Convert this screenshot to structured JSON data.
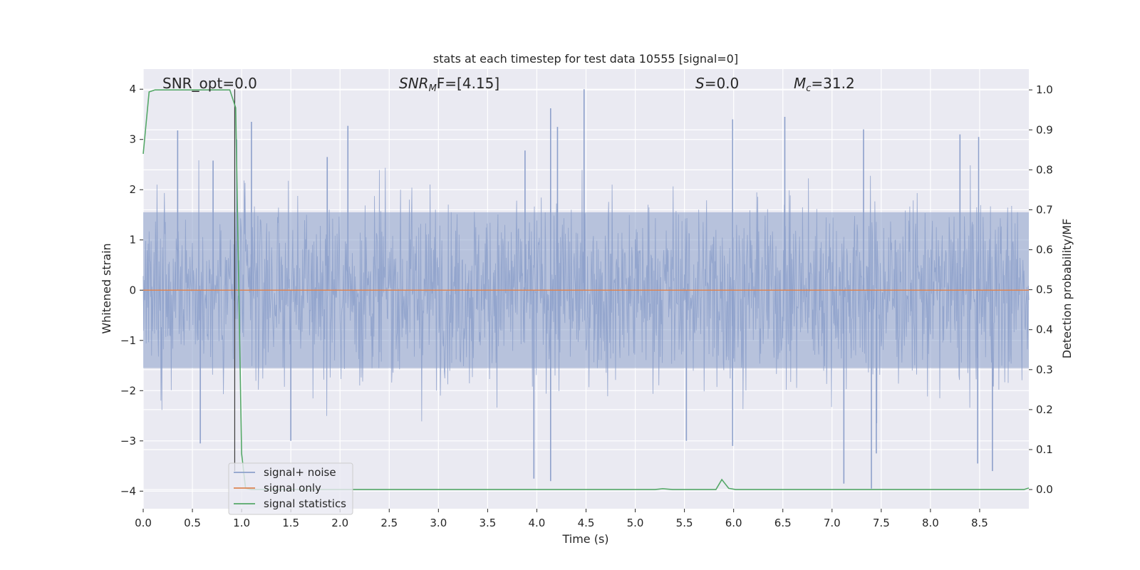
{
  "chart_data": {
    "type": "line",
    "title": "stats at each timestep for test data 10555 [signal=0]",
    "xlabel": "Time (s)",
    "ylabel": "Whitened strain",
    "ylabel_right": "Detection probability/MF",
    "xlim": [
      0.0,
      9.0
    ],
    "ylim": [
      -4.35,
      4.4
    ],
    "ylim_right": [
      -0.048,
      1.052
    ],
    "xticks": [
      0.0,
      0.5,
      1.0,
      1.5,
      2.0,
      2.5,
      3.0,
      3.5,
      4.0,
      4.5,
      5.0,
      5.5,
      6.0,
      6.5,
      7.0,
      7.5,
      8.0,
      8.5
    ],
    "xtick_labels": [
      "0.0",
      "0.5",
      "1.0",
      "1.5",
      "2.0",
      "2.5",
      "3.0",
      "3.5",
      "4.0",
      "4.5",
      "5.0",
      "5.5",
      "6.0",
      "6.5",
      "7.0",
      "7.5",
      "8.0",
      "8.5"
    ],
    "yticks": [
      -4,
      -3,
      -2,
      -1,
      0,
      1,
      2,
      3,
      4
    ],
    "ytick_labels": [
      "−4",
      "−3",
      "−2",
      "−1",
      "0",
      "1",
      "2",
      "3",
      "4"
    ],
    "yticks_right": [
      0.0,
      0.1,
      0.2,
      0.3,
      0.4,
      0.5,
      0.6,
      0.7,
      0.8,
      0.9,
      1.0
    ],
    "ytick_labels_right": [
      "0.0",
      "0.1",
      "0.2",
      "0.3",
      "0.4",
      "0.5",
      "0.6",
      "0.7",
      "0.8",
      "0.9",
      "1.0"
    ],
    "grid": true,
    "legend_position": "lower-left",
    "vertical_marker_x": 0.93,
    "annotations": {
      "snr_opt": "SNR_opt=0.0",
      "snr_mf_main": "SNR",
      "snr_mf_sub": "M",
      "snr_mf_rest": "F=[4.15]",
      "s_main": "S",
      "s_rest": "=0.0",
      "mc_main": "M",
      "mc_sub": "c",
      "mc_rest": "=31.2"
    },
    "series": [
      {
        "name": "signal+ noise",
        "color": "#8da0cb",
        "axis": "left",
        "description_points": "dense whitened noise, roughly within [-3.0, 3.3] with spikes to 4.0 at x=4.48 and -3.75 at x=3.97, -3.8 at x=4.14, -3.85 at x=7.12, -3.95 at x=7.4",
        "spikes": [
          [
            0.35,
            3.18
          ],
          [
            0.71,
            2.58
          ],
          [
            0.95,
            3.0
          ],
          [
            1.1,
            3.35
          ],
          [
            1.87,
            2.65
          ],
          [
            2.08,
            3.27
          ],
          [
            3.88,
            2.78
          ],
          [
            4.14,
            3.62
          ],
          [
            4.21,
            3.25
          ],
          [
            4.48,
            4.0
          ],
          [
            5.99,
            3.4
          ],
          [
            6.52,
            3.45
          ],
          [
            7.32,
            3.2
          ],
          [
            8.3,
            3.1
          ],
          [
            8.49,
            3.05
          ],
          [
            0.58,
            -3.05
          ],
          [
            1.5,
            -3.0
          ],
          [
            3.97,
            -3.75
          ],
          [
            4.14,
            -3.8
          ],
          [
            5.52,
            -3.0
          ],
          [
            5.99,
            -3.1
          ],
          [
            7.12,
            -3.85
          ],
          [
            7.4,
            -3.95
          ],
          [
            7.45,
            -3.25
          ],
          [
            8.48,
            -3.45
          ],
          [
            8.63,
            -3.6
          ]
        ]
      },
      {
        "name": "signal only",
        "color": "#dd8452",
        "axis": "left",
        "x": [
          0.0,
          9.0
        ],
        "y": [
          0.0,
          0.0
        ]
      },
      {
        "name": "signal statistics",
        "color": "#55a868",
        "axis": "right",
        "x": [
          0.0,
          0.06,
          0.12,
          0.2,
          0.8,
          0.88,
          0.94,
          1.0,
          1.04,
          1.1,
          5.2,
          5.28,
          5.38,
          5.82,
          5.88,
          5.95,
          6.02,
          8.95,
          9.0
        ],
        "y": [
          0.84,
          0.995,
          1.0,
          1.0,
          1.0,
          1.0,
          0.955,
          0.09,
          0.003,
          0.0,
          0.0,
          0.002,
          0.0,
          0.0,
          0.025,
          0.003,
          0.0,
          0.0,
          0.004
        ]
      }
    ]
  }
}
